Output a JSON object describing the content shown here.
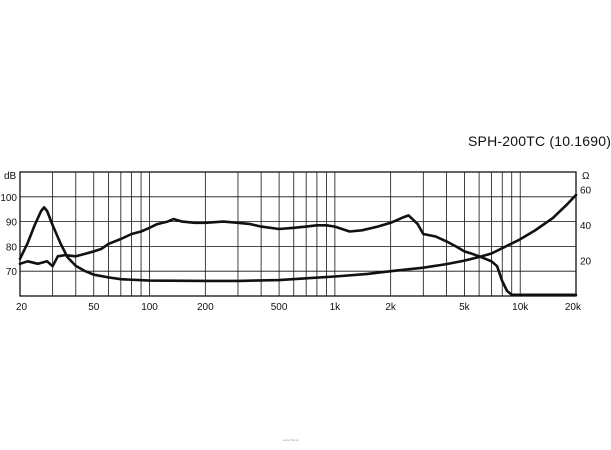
{
  "title": "SPH-200TC (10.1690)",
  "watermark": "www.bhd.pl",
  "colors": {
    "line": "#111111",
    "grid": "#111111",
    "background": "#ffffff"
  },
  "chart_data": {
    "type": "line",
    "x_scale": "log",
    "xlim": [
      20,
      20000
    ],
    "x_ticks": [
      {
        "value": 20,
        "label": "20"
      },
      {
        "value": 50,
        "label": "50"
      },
      {
        "value": 100,
        "label": "100"
      },
      {
        "value": 200,
        "label": "200"
      },
      {
        "value": 500,
        "label": "500"
      },
      {
        "value": 1000,
        "label": "1k"
      },
      {
        "value": 2000,
        "label": "2k"
      },
      {
        "value": 5000,
        "label": "5k"
      },
      {
        "value": 10000,
        "label": "10k"
      },
      {
        "value": 20000,
        "label": "20k"
      }
    ],
    "y_left": {
      "unit": "dB",
      "ylim": [
        60,
        110
      ],
      "ticks": [
        70,
        80,
        90,
        100
      ]
    },
    "y_right": {
      "unit": "Ω",
      "ylim": [
        0,
        70
      ],
      "ticks": [
        20,
        40,
        60
      ]
    },
    "grid": true,
    "series": [
      {
        "axis": "left",
        "points": [
          [
            20,
            73
          ],
          [
            22,
            74
          ],
          [
            25,
            73
          ],
          [
            28,
            74
          ],
          [
            30,
            72
          ],
          [
            32,
            76
          ],
          [
            35,
            76.5
          ],
          [
            40,
            76
          ],
          [
            45,
            77
          ],
          [
            50,
            78
          ],
          [
            55,
            79
          ],
          [
            60,
            81
          ],
          [
            70,
            83
          ],
          [
            80,
            85
          ],
          [
            90,
            86
          ],
          [
            100,
            87.5
          ],
          [
            110,
            89
          ],
          [
            125,
            90
          ],
          [
            135,
            91
          ],
          [
            150,
            90
          ],
          [
            175,
            89.5
          ],
          [
            200,
            89.5
          ],
          [
            250,
            90
          ],
          [
            300,
            89.5
          ],
          [
            350,
            89
          ],
          [
            400,
            88
          ],
          [
            500,
            87
          ],
          [
            600,
            87.5
          ],
          [
            700,
            88
          ],
          [
            800,
            88.5
          ],
          [
            900,
            88.5
          ],
          [
            1000,
            88
          ],
          [
            1200,
            86
          ],
          [
            1400,
            86.5
          ],
          [
            1700,
            88
          ],
          [
            2000,
            89.5
          ],
          [
            2300,
            91.5
          ],
          [
            2500,
            92.5
          ],
          [
            2800,
            89
          ],
          [
            3000,
            85
          ],
          [
            3500,
            84
          ],
          [
            4000,
            82
          ],
          [
            4500,
            80
          ],
          [
            5000,
            78
          ],
          [
            5500,
            77
          ],
          [
            6000,
            76
          ],
          [
            7000,
            74
          ],
          [
            7500,
            72
          ],
          [
            8000,
            66
          ],
          [
            8500,
            62
          ],
          [
            9000,
            60.5
          ],
          [
            10000,
            60.5
          ],
          [
            15000,
            60.5
          ],
          [
            20000,
            60.5
          ]
        ]
      },
      {
        "axis": "right",
        "points": [
          [
            20,
            21
          ],
          [
            22,
            30
          ],
          [
            24,
            40
          ],
          [
            26,
            48
          ],
          [
            27,
            50
          ],
          [
            28,
            48
          ],
          [
            30,
            40
          ],
          [
            33,
            30
          ],
          [
            36,
            22
          ],
          [
            40,
            17
          ],
          [
            45,
            14
          ],
          [
            50,
            12
          ],
          [
            60,
            10.5
          ],
          [
            70,
            9.5
          ],
          [
            100,
            8.7
          ],
          [
            200,
            8.5
          ],
          [
            300,
            8.5
          ],
          [
            500,
            9
          ],
          [
            700,
            10
          ],
          [
            1000,
            11
          ],
          [
            1500,
            12.5
          ],
          [
            2000,
            14
          ],
          [
            3000,
            16
          ],
          [
            4000,
            18
          ],
          [
            5000,
            20
          ],
          [
            6000,
            22
          ],
          [
            7000,
            24
          ],
          [
            8000,
            27
          ],
          [
            10000,
            32
          ],
          [
            12000,
            37
          ],
          [
            15000,
            44
          ],
          [
            18000,
            52
          ],
          [
            20000,
            57
          ]
        ]
      }
    ]
  }
}
